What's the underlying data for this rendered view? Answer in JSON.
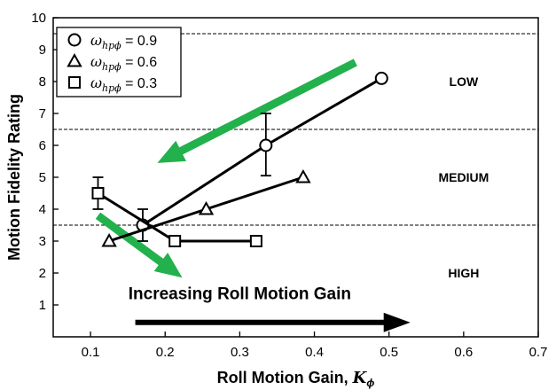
{
  "chart_data": {
    "type": "line",
    "title": "",
    "xlabel": "Roll Motion Gain, ",
    "xlabel_symbol": "K",
    "xlabel_subscript": "ϕ",
    "ylabel": "Motion Fidelity Rating",
    "xlim": [
      0.05,
      0.7
    ],
    "ylim": [
      0,
      10
    ],
    "x_ticks": [
      "0.1",
      "0.2",
      "0.3",
      "0.4",
      "0.5",
      "0.6",
      "0.7"
    ],
    "y_ticks": [
      "1",
      "2",
      "3",
      "4",
      "5",
      "6",
      "7",
      "8",
      "9",
      "10"
    ],
    "grid": false,
    "legend_placement": "top-left",
    "series": [
      {
        "name": "ω_hpϕ = 0.9",
        "legend_symbol": "ω",
        "legend_subscript": "hpϕ",
        "legend_value": " = 0.9",
        "marker": "circle",
        "x": [
          0.17,
          0.335,
          0.49
        ],
        "y": [
          3.5,
          6.0,
          8.1
        ],
        "error_bars": [
          [
            3.0,
            4.0
          ],
          [
            5.05,
            7.0
          ],
          null
        ]
      },
      {
        "name": "ω_hpϕ = 0.6",
        "legend_symbol": "ω",
        "legend_subscript": "hpϕ",
        "legend_value": " = 0.6",
        "marker": "triangle",
        "x": [
          0.125,
          0.255,
          0.385
        ],
        "y": [
          3.0,
          4.0,
          5.0
        ],
        "error_bars": [
          null,
          null,
          null
        ]
      },
      {
        "name": "ω_hpϕ = 0.3",
        "legend_symbol": "ω",
        "legend_subscript": "hpϕ",
        "legend_value": " = 0.3",
        "marker": "square",
        "x": [
          0.11,
          0.213,
          0.322
        ],
        "y": [
          4.5,
          3.0,
          3.0
        ],
        "error_bars": [
          [
            4.0,
            5.0
          ],
          null,
          null
        ]
      }
    ],
    "boundaries": [
      {
        "y": 9.5,
        "style": "dashed"
      },
      {
        "y": 6.5,
        "style": "dashed"
      },
      {
        "y": 3.5,
        "style": "dashed"
      }
    ],
    "regions": [
      {
        "label": "LOW",
        "x": 0.6,
        "y": 8.0
      },
      {
        "label": "MEDIUM",
        "x": 0.6,
        "y": 5.0
      },
      {
        "label": "HIGH",
        "x": 0.6,
        "y": 2.0
      }
    ],
    "annotations": [
      {
        "text": "Increasing Roll Motion Gain",
        "x": 0.3,
        "y": 1.35
      }
    ],
    "arrows": [
      {
        "name": "green-arrow-upper",
        "color": "#22b14c",
        "from": [
          0.455,
          8.6
        ],
        "to": [
          0.215,
          5.75
        ]
      },
      {
        "name": "green-arrow-lower",
        "color": "#22b14c",
        "from": [
          0.11,
          3.8
        ],
        "to": [
          0.2,
          2.25
        ]
      },
      {
        "name": "black-arrow",
        "color": "#000000",
        "from": [
          0.16,
          0.45
        ],
        "to": [
          0.5,
          0.45
        ]
      }
    ]
  }
}
